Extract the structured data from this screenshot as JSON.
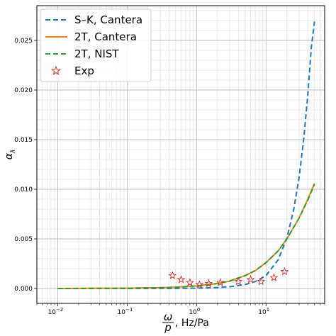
{
  "chart_data": {
    "type": "line",
    "xlabel_numerator": "ω",
    "xlabel_denominator": "p",
    "xlabel_units": ", Hz/Pa",
    "ylabel_symbol": "α",
    "ylabel_subscript": "λ",
    "xscale": "log",
    "xlim": [
      0.005,
      70
    ],
    "ylim": [
      -0.0015,
      0.0285
    ],
    "grid": "on (major and minor)",
    "legend_position": "top-left",
    "x_ticks": [
      {
        "value": 0.01,
        "base": "10",
        "exp": "−2"
      },
      {
        "value": 0.1,
        "base": "10",
        "exp": "−1"
      },
      {
        "value": 1,
        "base": "10",
        "exp": "0"
      },
      {
        "value": 10,
        "base": "10",
        "exp": "1"
      }
    ],
    "y_ticks": [
      {
        "value": 0.0,
        "label": "0.000"
      },
      {
        "value": 0.005,
        "label": "0.005"
      },
      {
        "value": 0.01,
        "label": "0.010"
      },
      {
        "value": 0.015,
        "label": "0.015"
      },
      {
        "value": 0.02,
        "label": "0.020"
      },
      {
        "value": 0.025,
        "label": "0.025"
      }
    ],
    "series": [
      {
        "name": "S–K, Cantera",
        "style": "dashed",
        "color": "#1f77b4",
        "x": [
          0.01,
          0.1,
          0.5,
          1,
          2,
          3,
          5,
          7,
          10,
          15,
          20,
          25,
          30,
          35,
          40,
          45,
          50
        ],
        "y": [
          0.0,
          0.0,
          1e-05,
          3e-05,
          0.0001,
          0.00018,
          0.0004,
          0.0007,
          0.0013,
          0.0029,
          0.0051,
          0.0079,
          0.0112,
          0.0151,
          0.0195,
          0.0243,
          0.0269
        ]
      },
      {
        "name": "2T, Cantera",
        "style": "solid",
        "color": "#ff7f0e",
        "x": [
          0.01,
          0.1,
          0.3,
          0.5,
          1,
          2,
          3,
          5,
          7,
          10,
          15,
          20,
          30,
          40,
          50
        ],
        "y": [
          0.0,
          3e-05,
          8e-05,
          0.00013,
          0.00026,
          0.0005,
          0.00075,
          0.0013,
          0.0018,
          0.0026,
          0.0038,
          0.005,
          0.0071,
          0.009,
          0.0106
        ]
      },
      {
        "name": "2T, NIST",
        "style": "dashed",
        "color": "#2ca02c",
        "x": [
          0.01,
          0.1,
          0.3,
          0.5,
          1,
          2,
          3,
          5,
          7,
          10,
          15,
          20,
          30,
          40,
          50
        ],
        "y": [
          0.0,
          3e-05,
          8e-05,
          0.00013,
          0.00026,
          0.0005,
          0.00075,
          0.0013,
          0.0018,
          0.0026,
          0.0038,
          0.005,
          0.0071,
          0.0089,
          0.0105
        ]
      },
      {
        "name": "Exp",
        "style": "markers",
        "marker": "star",
        "color": "#d62728",
        "x": [
          0.45,
          0.6,
          0.8,
          1.1,
          1.5,
          2.2,
          4.0,
          6.0,
          8.5,
          13.0,
          18.5
        ],
        "y": [
          0.0013,
          0.0009,
          0.0006,
          0.0004,
          0.0005,
          0.0006,
          0.0007,
          0.0009,
          0.0007,
          0.0011,
          0.0017
        ]
      }
    ]
  }
}
